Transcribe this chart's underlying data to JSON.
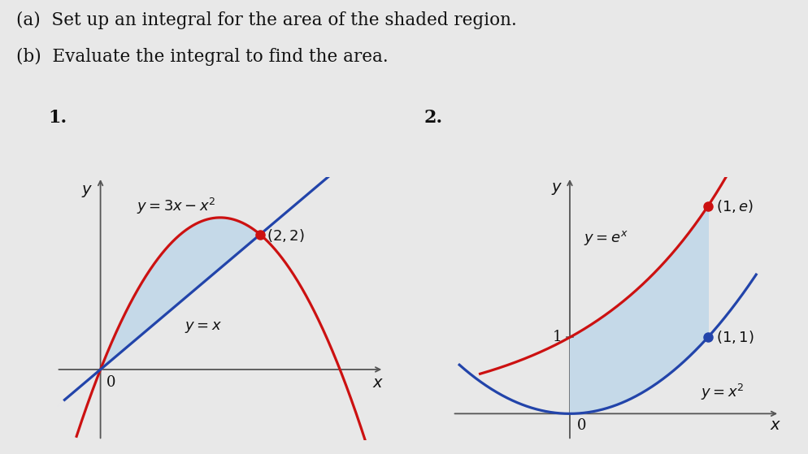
{
  "title_a": "(a)  Set up an integral for the area of the shaded region.",
  "title_b": "(b)  Evaluate the integral to find the area.",
  "label1": "1.",
  "label2": "2.",
  "bg_color": "#e8e8e8",
  "shade_color": "#c5d9e8",
  "curve1_color": "#cc1111",
  "line1_color": "#2244aa",
  "curve2_color": "#cc1111",
  "curve2b_color": "#2244aa",
  "dot_color1": "#cc1111",
  "dot_color2_top": "#cc1111",
  "dot_color2_bot": "#2244aa",
  "axis_color": "#555555",
  "text_color": "#111111",
  "eq1_parabola": "$y = 3x - x^2$",
  "eq1_line": "$y = x$",
  "pt1": "$(2, 2)$",
  "eq2_exp": "$y = e^x$",
  "eq2_para": "$y = x^2$",
  "pt2_top": "$(1, e)$",
  "pt2_bot": "$(1, 1)$",
  "tick1": "1",
  "tick0": "0",
  "axis_label_x": "$x$",
  "axis_label_y": "$y$"
}
